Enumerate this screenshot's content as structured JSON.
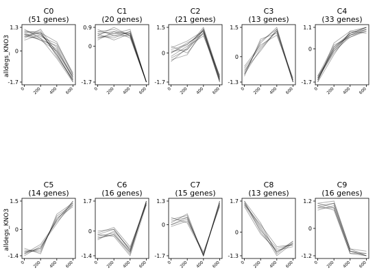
{
  "figure": {
    "row_ylabel": "alldegs_KNO3"
  },
  "chart_data": [
    {
      "type": "line",
      "title": "C0",
      "subtitle": "(51 genes)",
      "x": [
        0,
        200,
        400,
        600
      ],
      "ylim": [
        -1.7,
        1.3
      ],
      "yticks": [
        -1.7,
        0,
        1.3
      ],
      "ytick_labels": [
        "-1.7",
        "0",
        "1.3"
      ],
      "xtick_labels": [
        "0",
        "200",
        "400",
        "600"
      ],
      "lines": [
        [
          1.1,
          0.9,
          0.0,
          -1.5
        ],
        [
          0.9,
          1.0,
          -0.2,
          -1.6
        ],
        [
          0.8,
          0.7,
          0.1,
          -1.4
        ],
        [
          1.0,
          0.6,
          0.3,
          -1.3
        ],
        [
          0.7,
          1.2,
          -0.1,
          -1.7
        ],
        [
          0.9,
          0.8,
          0.4,
          -1.2
        ],
        [
          1.0,
          1.1,
          -0.3,
          -1.6
        ],
        [
          0.6,
          0.9,
          0.2,
          -1.5
        ],
        [
          1.2,
          0.7,
          -0.4,
          -1.7
        ],
        [
          0.8,
          1.0,
          0.5,
          -1.3
        ],
        [
          0.9,
          0.6,
          0.0,
          -1.4
        ],
        [
          1.1,
          1.0,
          -0.2,
          -1.6
        ]
      ]
    },
    {
      "type": "line",
      "title": "C1",
      "subtitle": "(20 genes)",
      "x": [
        0,
        200,
        400,
        600
      ],
      "ylim": [
        -1.7,
        0.9
      ],
      "yticks": [
        -1.7,
        0,
        0.9
      ],
      "ytick_labels": [
        "-1.7",
        "0",
        "0.9"
      ],
      "xtick_labels": [
        "0",
        "200",
        "400",
        "600"
      ],
      "lines": [
        [
          0.6,
          0.7,
          0.6,
          -1.7
        ],
        [
          0.5,
          0.4,
          0.7,
          -1.7
        ],
        [
          0.7,
          0.8,
          0.5,
          -1.7
        ],
        [
          0.4,
          0.6,
          0.6,
          -1.7
        ],
        [
          0.8,
          0.5,
          0.7,
          -1.7
        ],
        [
          0.3,
          0.7,
          0.4,
          -1.7
        ],
        [
          0.6,
          0.3,
          0.6,
          -1.7
        ],
        [
          0.5,
          0.9,
          0.5,
          -1.7
        ],
        [
          0.7,
          0.6,
          0.8,
          -1.7
        ],
        [
          0.4,
          0.5,
          0.5,
          -1.7
        ]
      ]
    },
    {
      "type": "line",
      "title": "C2",
      "subtitle": "(21 genes)",
      "x": [
        0,
        200,
        400,
        600
      ],
      "ylim": [
        -1.7,
        1.5
      ],
      "yticks": [
        -1.7,
        0,
        1.5
      ],
      "ytick_labels": [
        "-1.7",
        "0",
        "1.5"
      ],
      "xtick_labels": [
        "0",
        "200",
        "400",
        "600"
      ],
      "lines": [
        [
          0.2,
          0.5,
          1.3,
          -1.6
        ],
        [
          -0.3,
          0.2,
          1.4,
          -1.5
        ],
        [
          0.0,
          0.6,
          1.1,
          -1.7
        ],
        [
          -0.5,
          0.3,
          1.5,
          -1.4
        ],
        [
          0.4,
          0.0,
          1.2,
          -1.6
        ],
        [
          -0.2,
          0.4,
          1.0,
          -1.3
        ],
        [
          0.3,
          0.7,
          1.3,
          -1.7
        ],
        [
          -0.4,
          -0.1,
          1.4,
          -1.5
        ],
        [
          0.1,
          0.2,
          1.2,
          -1.6
        ],
        [
          0.0,
          0.5,
          1.3,
          -1.4
        ]
      ]
    },
    {
      "type": "line",
      "title": "C3",
      "subtitle": "(13 genes)",
      "x": [
        0,
        200,
        400,
        600
      ],
      "ylim": [
        -1.3,
        1.5
      ],
      "yticks": [
        -1.3,
        0,
        1.5
      ],
      "ytick_labels": [
        "-1.3",
        "0",
        "1.5"
      ],
      "xtick_labels": [
        "0",
        "200",
        "400",
        "600"
      ],
      "lines": [
        [
          -0.9,
          0.8,
          1.4,
          -1.3
        ],
        [
          -0.6,
          0.5,
          1.3,
          -1.2
        ],
        [
          -1.0,
          0.9,
          1.2,
          -1.3
        ],
        [
          -0.7,
          0.3,
          1.4,
          -1.2
        ],
        [
          -0.8,
          0.7,
          1.5,
          -1.3
        ],
        [
          -0.5,
          0.6,
          1.1,
          -1.1
        ],
        [
          -0.9,
          0.4,
          1.3,
          -1.3
        ]
      ]
    },
    {
      "type": "line",
      "title": "C4",
      "subtitle": "(33 genes)",
      "x": [
        0,
        200,
        400,
        600
      ],
      "ylim": [
        -1.7,
        1.1
      ],
      "yticks": [
        -1.7,
        0,
        1.1
      ],
      "ytick_labels": [
        "-1.7",
        "0",
        "1.1"
      ],
      "xtick_labels": [
        "0",
        "200",
        "400",
        "600"
      ],
      "lines": [
        [
          -1.6,
          -0.1,
          0.8,
          1.1
        ],
        [
          -1.5,
          0.1,
          0.7,
          1.0
        ],
        [
          -1.7,
          -0.3,
          0.9,
          1.1
        ],
        [
          -1.4,
          0.2,
          0.6,
          0.9
        ],
        [
          -1.6,
          0.0,
          0.8,
          1.0
        ],
        [
          -1.5,
          -0.2,
          0.7,
          1.1
        ],
        [
          -1.7,
          0.3,
          0.9,
          0.8
        ],
        [
          -1.4,
          -0.1,
          0.6,
          1.0
        ],
        [
          -1.6,
          0.1,
          0.8,
          1.1
        ],
        [
          -1.5,
          0.0,
          0.7,
          0.9
        ]
      ]
    },
    {
      "type": "line",
      "title": "C5",
      "subtitle": "(14 genes)",
      "x": [
        0,
        200,
        400,
        600
      ],
      "ylim": [
        -1.4,
        1.5
      ],
      "yticks": [
        -1.4,
        0,
        1.5
      ],
      "ytick_labels": [
        "-1.4",
        "0",
        "1.5"
      ],
      "xtick_labels": [
        "0",
        "200",
        "400",
        "600"
      ],
      "lines": [
        [
          -1.3,
          -1.0,
          0.5,
          1.4
        ],
        [
          -1.1,
          -1.2,
          0.7,
          1.3
        ],
        [
          -1.4,
          -0.9,
          0.3,
          1.5
        ],
        [
          -1.2,
          -1.1,
          0.6,
          1.2
        ],
        [
          -1.0,
          -1.3,
          0.8,
          1.4
        ],
        [
          -1.3,
          -0.8,
          0.4,
          1.3
        ],
        [
          -1.2,
          -1.0,
          0.5,
          1.5
        ]
      ]
    },
    {
      "type": "line",
      "title": "C6",
      "subtitle": "(16 genes)",
      "x": [
        0,
        200,
        400,
        600
      ],
      "ylim": [
        -1.4,
        1.7
      ],
      "yticks": [
        -1.4,
        0,
        1.7
      ],
      "ytick_labels": [
        "-1.4",
        "0",
        "1.7"
      ],
      "xtick_labels": [
        "0",
        "200",
        "400",
        "600"
      ],
      "lines": [
        [
          -0.2,
          0.1,
          -1.1,
          1.6
        ],
        [
          -0.4,
          -0.2,
          -1.3,
          1.7
        ],
        [
          -0.1,
          0.2,
          -0.9,
          1.5
        ],
        [
          -0.3,
          -0.1,
          -1.2,
          1.6
        ],
        [
          -0.5,
          0.0,
          -1.0,
          1.7
        ],
        [
          -0.2,
          -0.3,
          -1.4,
          1.5
        ],
        [
          0.0,
          0.1,
          -1.1,
          1.6
        ],
        [
          -0.4,
          -0.2,
          -1.2,
          1.7
        ]
      ]
    },
    {
      "type": "line",
      "title": "C7",
      "subtitle": "(15 genes)",
      "x": [
        0,
        200,
        400,
        600
      ],
      "ylim": [
        -1.7,
        1.3
      ],
      "yticks": [
        -1.7,
        0,
        1.3
      ],
      "ytick_labels": [
        "-1.7",
        "0",
        "1.3"
      ],
      "xtick_labels": [
        "0",
        "200",
        "400",
        "600"
      ],
      "lines": [
        [
          0.2,
          0.4,
          -1.7,
          1.2
        ],
        [
          0.0,
          0.3,
          -1.6,
          1.1
        ],
        [
          0.3,
          0.5,
          -1.7,
          1.3
        ],
        [
          -0.1,
          0.2,
          -1.5,
          1.0
        ],
        [
          0.1,
          0.6,
          -1.7,
          1.2
        ],
        [
          0.4,
          0.1,
          -1.6,
          1.1
        ],
        [
          0.0,
          0.4,
          -1.7,
          1.3
        ]
      ]
    },
    {
      "type": "line",
      "title": "C8",
      "subtitle": "(13 genes)",
      "x": [
        0,
        200,
        400,
        600
      ],
      "ylim": [
        -1.3,
        1.7
      ],
      "yticks": [
        -1.3,
        0,
        1.7
      ],
      "ytick_labels": [
        "-1.3",
        "0",
        "1.7"
      ],
      "xtick_labels": [
        "0",
        "200",
        "400",
        "600"
      ],
      "lines": [
        [
          1.6,
          0.3,
          -1.1,
          -0.6
        ],
        [
          1.5,
          0.1,
          -0.9,
          -0.7
        ],
        [
          1.7,
          0.5,
          -1.2,
          -0.5
        ],
        [
          1.4,
          -0.1,
          -1.0,
          -0.8
        ],
        [
          1.6,
          0.2,
          -1.3,
          -0.6
        ],
        [
          1.5,
          0.4,
          -0.8,
          -0.7
        ],
        [
          1.7,
          0.0,
          -1.1,
          -0.5
        ]
      ]
    },
    {
      "type": "line",
      "title": "C9",
      "subtitle": "(16 genes)",
      "x": [
        0,
        200,
        400,
        600
      ],
      "ylim": [
        -1.2,
        1.2
      ],
      "yticks": [
        -1.2,
        0,
        1.2
      ],
      "ytick_labels": [
        "-1.2",
        "0",
        "1.2"
      ],
      "xtick_labels": [
        "0",
        "200",
        "400",
        "600"
      ],
      "lines": [
        [
          1.0,
          1.1,
          -1.0,
          -1.2
        ],
        [
          0.9,
          0.9,
          -1.1,
          -1.1
        ],
        [
          1.1,
          1.2,
          -0.9,
          -1.2
        ],
        [
          0.8,
          1.0,
          -1.0,
          -1.1
        ],
        [
          1.0,
          0.8,
          -1.1,
          -1.2
        ],
        [
          0.9,
          1.1,
          -0.9,
          -1.0
        ],
        [
          1.1,
          0.9,
          -1.0,
          -1.2
        ]
      ]
    }
  ]
}
